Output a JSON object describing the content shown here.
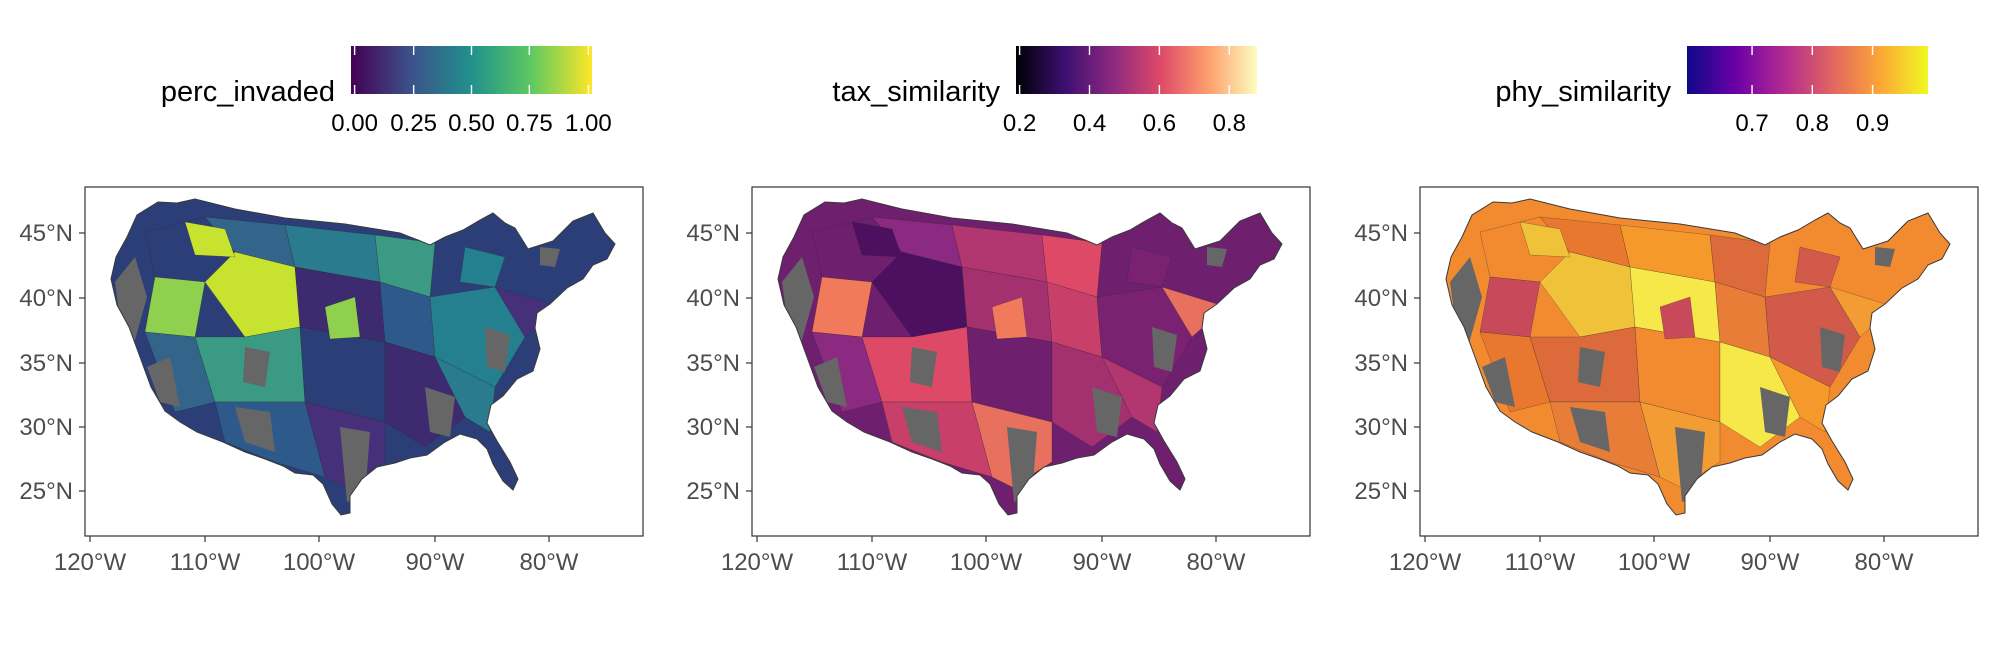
{
  "panels": [
    {
      "legend": {
        "title": "perc_invaded",
        "palette": "viridis",
        "gradient": [
          "#440154",
          "#3b528b",
          "#21918c",
          "#5ec962",
          "#fde725"
        ],
        "ticks": [
          "0.00",
          "0.25",
          "0.50",
          "0.75",
          "1.00"
        ]
      },
      "axes": {
        "x_ticks": [
          "120°W",
          "110°W",
          "100°W",
          "90°W",
          "80°W"
        ],
        "y_ticks": [
          "45°N",
          "40°N",
          "35°N",
          "30°N",
          "25°N"
        ]
      },
      "region_colors": [
        "#2c3e78",
        "#33648a",
        "#2a7b8e",
        "#3a9a84",
        "#8fd14f",
        "#c7e32f",
        "#3e2a6e",
        "#2e5a8b",
        "#24808e",
        "#46307a"
      ]
    },
    {
      "legend": {
        "title": "tax_similarity",
        "palette": "magma",
        "gradient": [
          "#000004",
          "#3b0f70",
          "#8c2981",
          "#de4968",
          "#fe9f6d",
          "#fcfdbf"
        ],
        "ticks": [
          "0.2",
          "0.4",
          "0.6",
          "0.8"
        ]
      },
      "axes": {
        "x_ticks": [
          "120°W",
          "110°W",
          "100°W",
          "90°W",
          "80°W"
        ],
        "y_ticks": [
          "45°N",
          "40°N",
          "35°N",
          "30°N",
          "25°N"
        ]
      },
      "region_colors": [
        "#6e1f6e",
        "#8c2981",
        "#b2366f",
        "#de4968",
        "#f27a5c",
        "#4d1060",
        "#a3306f",
        "#c83f6a",
        "#7a2271",
        "#e8705f"
      ]
    },
    {
      "legend": {
        "title": "phy_similarity",
        "palette": "plasma",
        "gradient": [
          "#0d0887",
          "#6a00a8",
          "#b12a90",
          "#e16462",
          "#fca636",
          "#f0f921"
        ],
        "ticks": [
          "0.7",
          "0.8",
          "0.9"
        ]
      },
      "axes": {
        "x_ticks": [
          "120°W",
          "110°W",
          "100°W",
          "90°W",
          "80°W"
        ],
        "y_ticks": [
          "45°N",
          "40°N",
          "35°N",
          "30°N",
          "25°N"
        ]
      },
      "region_colors": [
        "#f28a30",
        "#e9782f",
        "#f59a2a",
        "#dd6a3a",
        "#c84a5a",
        "#f0c23a",
        "#f7e84a",
        "#e77d36",
        "#d15a4a",
        "#f39c34"
      ]
    }
  ],
  "no_data_color": "#666666"
}
